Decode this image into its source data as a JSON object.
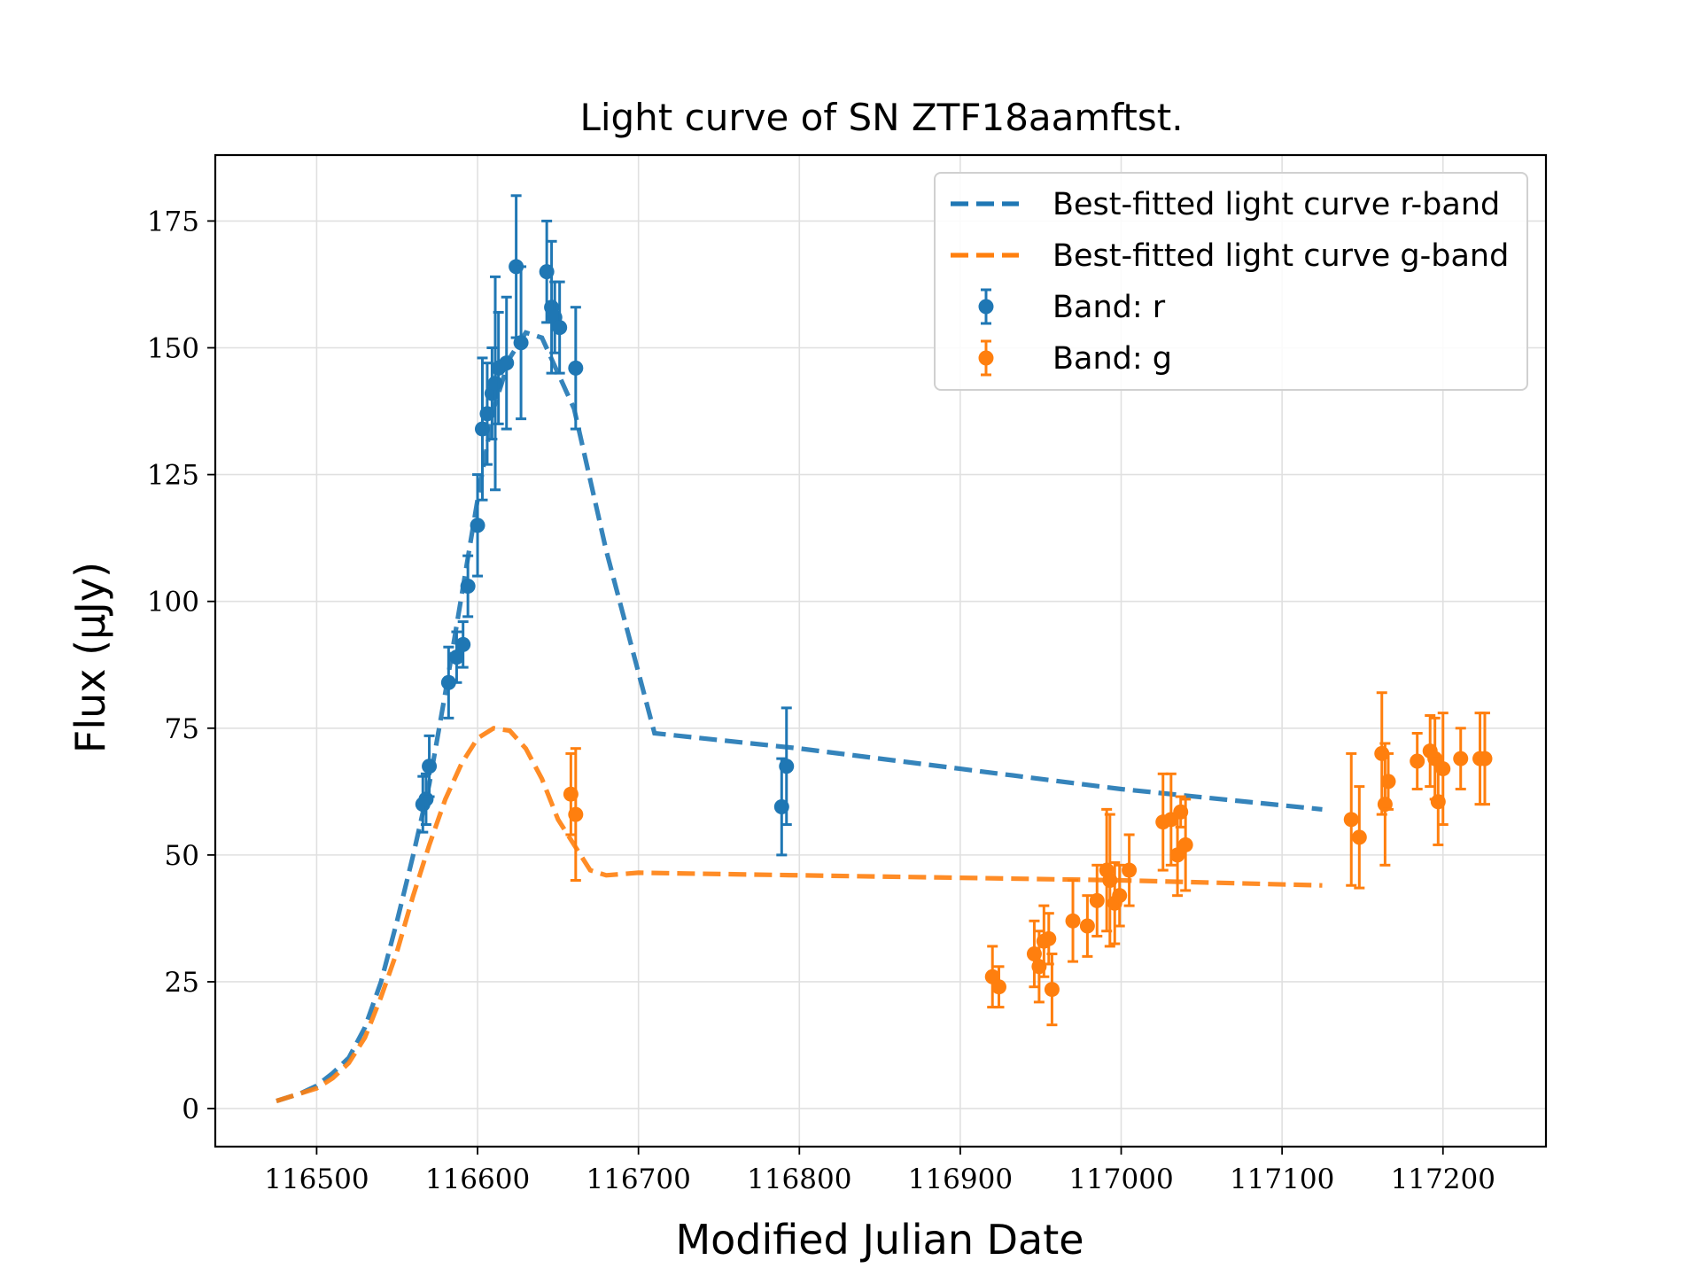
{
  "chart_data": {
    "type": "scatter",
    "title": "Light curve of SN ZTF18aamftst.",
    "xlabel": "Modified Julian Date",
    "ylabel": "Flux (μJy)",
    "xlim": [
      116437,
      117264
    ],
    "ylim": [
      -7.5,
      188
    ],
    "x_ticks": [
      116500,
      116600,
      116700,
      116800,
      116900,
      117000,
      117100,
      117200
    ],
    "y_ticks": [
      0,
      25,
      50,
      75,
      100,
      125,
      150,
      175
    ],
    "grid": true,
    "legend_position": "top-right",
    "colors": {
      "r": "#1f77b4",
      "g": "#ff7f0e"
    },
    "series": [
      {
        "name": "Best-fitted light curve r-band",
        "kind": "line-dashed",
        "band": "r",
        "x": [
          116475,
          116490,
          116500,
          116510,
          116520,
          116530,
          116540,
          116550,
          116560,
          116570,
          116580,
          116590,
          116600,
          116610,
          116620,
          116630,
          116640,
          116660,
          116680,
          116710,
          116800,
          116900,
          117000,
          117125
        ],
        "y": [
          1.5,
          3,
          4.5,
          7,
          10,
          16,
          25,
          37,
          50,
          64,
          82,
          101,
          120,
          138,
          148,
          153,
          152,
          138,
          110,
          74,
          71,
          67,
          63,
          59
        ]
      },
      {
        "name": "Best-fitted light curve g-band",
        "kind": "line-dashed",
        "band": "g",
        "x": [
          116475,
          116490,
          116500,
          116510,
          116520,
          116530,
          116540,
          116550,
          116560,
          116570,
          116580,
          116590,
          116600,
          116610,
          116620,
          116630,
          116640,
          116650,
          116660,
          116670,
          116680,
          116700,
          116800,
          116900,
          117000,
          117125
        ],
        "y": [
          1.5,
          3,
          4,
          6,
          9,
          14,
          22,
          31,
          42,
          52,
          61,
          68,
          73,
          75,
          74.5,
          71,
          65,
          57,
          52,
          47,
          46,
          46.5,
          46,
          45.5,
          45,
          44
        ]
      },
      {
        "name": "Band: r",
        "kind": "errorbar",
        "band": "r",
        "points": [
          {
            "x": 116566,
            "y": 60,
            "err": 5.5
          },
          {
            "x": 116568,
            "y": 61,
            "err": 5
          },
          {
            "x": 116570,
            "y": 67.5,
            "err": 6
          },
          {
            "x": 116582,
            "y": 84,
            "err": 7
          },
          {
            "x": 116587,
            "y": 89,
            "err": 5
          },
          {
            "x": 116591,
            "y": 91.5,
            "err": 4.5
          },
          {
            "x": 116594,
            "y": 103,
            "err": 6
          },
          {
            "x": 116600,
            "y": 115,
            "err": 10
          },
          {
            "x": 116603,
            "y": 134,
            "err": 14
          },
          {
            "x": 116606,
            "y": 137,
            "err": 10
          },
          {
            "x": 116609,
            "y": 141,
            "err": 9
          },
          {
            "x": 116611,
            "y": 143,
            "err": 21
          },
          {
            "x": 116613,
            "y": 146,
            "err": 11
          },
          {
            "x": 116618,
            "y": 147,
            "err": 13
          },
          {
            "x": 116624,
            "y": 166,
            "err": 14
          },
          {
            "x": 116627,
            "y": 151,
            "err": 15
          },
          {
            "x": 116643,
            "y": 165,
            "err": 10
          },
          {
            "x": 116646,
            "y": 158,
            "err": 13
          },
          {
            "x": 116648,
            "y": 156,
            "err": 7
          },
          {
            "x": 116651,
            "y": 154,
            "err": 9
          },
          {
            "x": 116661,
            "y": 146,
            "err": 12
          },
          {
            "x": 116789,
            "y": 59.5,
            "err": 9.5
          },
          {
            "x": 116792,
            "y": 67.5,
            "err": 11.5
          }
        ]
      },
      {
        "name": "Band: g",
        "kind": "errorbar",
        "band": "g",
        "points": [
          {
            "x": 116658,
            "y": 62,
            "err": 8
          },
          {
            "x": 116661,
            "y": 58,
            "err": 13
          },
          {
            "x": 116920,
            "y": 26,
            "err": 6
          },
          {
            "x": 116924,
            "y": 24,
            "err": 4
          },
          {
            "x": 116946,
            "y": 30.5,
            "err": 6.5
          },
          {
            "x": 116949,
            "y": 28,
            "err": 7
          },
          {
            "x": 116952,
            "y": 33,
            "err": 7
          },
          {
            "x": 116955,
            "y": 33.5,
            "err": 5
          },
          {
            "x": 116957,
            "y": 23.5,
            "err": 7
          },
          {
            "x": 116970,
            "y": 37,
            "err": 8
          },
          {
            "x": 116979,
            "y": 36,
            "err": 6
          },
          {
            "x": 116985,
            "y": 41,
            "err": 7
          },
          {
            "x": 116991,
            "y": 47,
            "err": 12
          },
          {
            "x": 116993,
            "y": 45,
            "err": 13
          },
          {
            "x": 116996,
            "y": 40.5,
            "err": 8
          },
          {
            "x": 116999,
            "y": 42,
            "err": 6
          },
          {
            "x": 117005,
            "y": 47,
            "err": 7
          },
          {
            "x": 117026,
            "y": 56.5,
            "err": 9.5
          },
          {
            "x": 117031,
            "y": 57,
            "err": 9
          },
          {
            "x": 117035,
            "y": 50,
            "err": 8
          },
          {
            "x": 117037,
            "y": 58.5,
            "err": 3
          },
          {
            "x": 117040,
            "y": 52,
            "err": 9
          },
          {
            "x": 117143,
            "y": 57,
            "err": 13
          },
          {
            "x": 117148,
            "y": 53.5,
            "err": 10
          },
          {
            "x": 117162,
            "y": 70,
            "err": 12
          },
          {
            "x": 117164,
            "y": 60,
            "err": 12
          },
          {
            "x": 117166,
            "y": 64.5,
            "err": 5.5
          },
          {
            "x": 117184,
            "y": 68.5,
            "err": 5.5
          },
          {
            "x": 117192,
            "y": 70.5,
            "err": 7
          },
          {
            "x": 117195,
            "y": 69,
            "err": 8
          },
          {
            "x": 117197,
            "y": 60.5,
            "err": 8.5
          },
          {
            "x": 117200,
            "y": 67,
            "err": 11
          },
          {
            "x": 117211,
            "y": 69,
            "err": 6
          },
          {
            "x": 117223,
            "y": 69,
            "err": 9
          },
          {
            "x": 117226,
            "y": 69,
            "err": 9
          }
        ]
      }
    ]
  }
}
